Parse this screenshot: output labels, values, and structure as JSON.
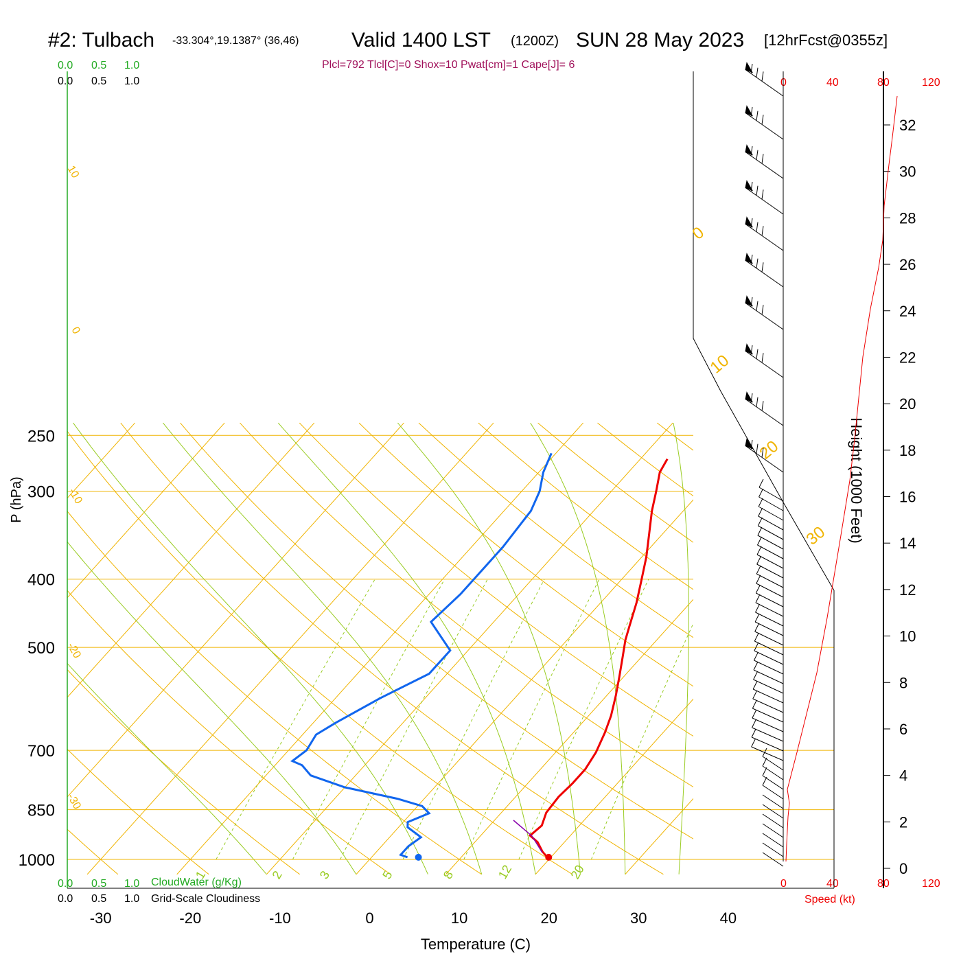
{
  "header": {
    "station": "#2: Tulbach",
    "coords": "-33.304°,19.1387° (36,46)",
    "valid": "Valid 1400 LST",
    "zulu": "(1200Z)",
    "date": "SUN 28 May 2023",
    "forecast": "[12hrFcst@0355z]",
    "params": "Plcl=792 Tlcl[C]=0 Shox=10 Pwat[cm]=1 Cape[J]= 6"
  },
  "scales": {
    "cloudwater_ticks": [
      "0.0",
      "0.5",
      "1.0"
    ],
    "cloudiness_ticks": [
      "0.0",
      "0.5",
      "1.0"
    ],
    "cloudwater_label": "CloudWater (g/Kg)",
    "cloudiness_label": "Grid-Scale Cloudiness",
    "speed_ticks": [
      "0",
      "40",
      "80",
      "120"
    ],
    "speed_label": "Speed (kt)"
  },
  "colors": {
    "isobar": "#f0b400",
    "dry_adiabat": "#f0b400",
    "moist_adiabat": "#99cc22",
    "mixing_ratio": "#99cc22",
    "temperature": "#ee0000",
    "dewpoint": "#1166ee",
    "cloud_green": "#22aa22",
    "speed_red": "#ee0000"
  },
  "chart_data": {
    "type": "line",
    "xlabel": "Temperature (C)",
    "ylabel": "P (hPa)",
    "y2label": "Height (1000 Feet)",
    "x_ticks": [
      "-30",
      "-20",
      "-10",
      "0",
      "10",
      "20",
      "30",
      "40"
    ],
    "p_ticks": [
      "250",
      "300",
      "400",
      "500",
      "700",
      "850",
      "1000"
    ],
    "height_ticks": [
      "0",
      "2",
      "4",
      "6",
      "8",
      "10",
      "12",
      "14",
      "16",
      "18",
      "20",
      "22",
      "24",
      "26",
      "28",
      "30",
      "32"
    ],
    "dry_adiabat_labels": [
      "10",
      "0",
      "-10",
      "-20",
      "-30",
      "0",
      "10",
      "20",
      "30"
    ],
    "mixing_ratio_labels": [
      "1",
      "2",
      "3",
      "5",
      "8",
      "12",
      "20"
    ],
    "series": [
      {
        "name": "Temperature",
        "points": [
          [
            19.6,
            993
          ],
          [
            18.5,
            975
          ],
          [
            17.0,
            945
          ],
          [
            15.5,
            925
          ],
          [
            15.8,
            895
          ],
          [
            15.0,
            858
          ],
          [
            14.8,
            815
          ],
          [
            15.0,
            780
          ],
          [
            15.0,
            745
          ],
          [
            14.5,
            705
          ],
          [
            13.5,
            660
          ],
          [
            12.5,
            625
          ],
          [
            11.0,
            585
          ],
          [
            9.5,
            550
          ],
          [
            8.0,
            518
          ],
          [
            6.5,
            488
          ],
          [
            5.5,
            465
          ],
          [
            4.0,
            432
          ],
          [
            2.5,
            405
          ],
          [
            0.5,
            372
          ],
          [
            -1.5,
            345
          ],
          [
            -3.5,
            320
          ],
          [
            -5.0,
            300
          ],
          [
            -6.5,
            282
          ],
          [
            -7.0,
            270
          ]
        ]
      },
      {
        "name": "Dewpoint",
        "points": [
          [
            4.0,
            993
          ],
          [
            3.0,
            985
          ],
          [
            3.0,
            958
          ],
          [
            3.5,
            930
          ],
          [
            1.0,
            900
          ],
          [
            0.5,
            885
          ],
          [
            2.0,
            860
          ],
          [
            0.5,
            840
          ],
          [
            -3.0,
            820
          ],
          [
            -10.0,
            790
          ],
          [
            -15.0,
            760
          ],
          [
            -17.0,
            735
          ],
          [
            -18.5,
            725
          ],
          [
            -18.0,
            700
          ],
          [
            -18.5,
            665
          ],
          [
            -17.5,
            640
          ],
          [
            -15.0,
            590
          ],
          [
            -12.0,
            545
          ],
          [
            -12.0,
            505
          ],
          [
            -17.0,
            460
          ],
          [
            -16.5,
            420
          ],
          [
            -16.5,
            395
          ],
          [
            -16.5,
            360
          ],
          [
            -17.0,
            320
          ],
          [
            -18.0,
            300
          ],
          [
            -19.5,
            282
          ],
          [
            -20.5,
            265
          ]
        ]
      }
    ]
  }
}
